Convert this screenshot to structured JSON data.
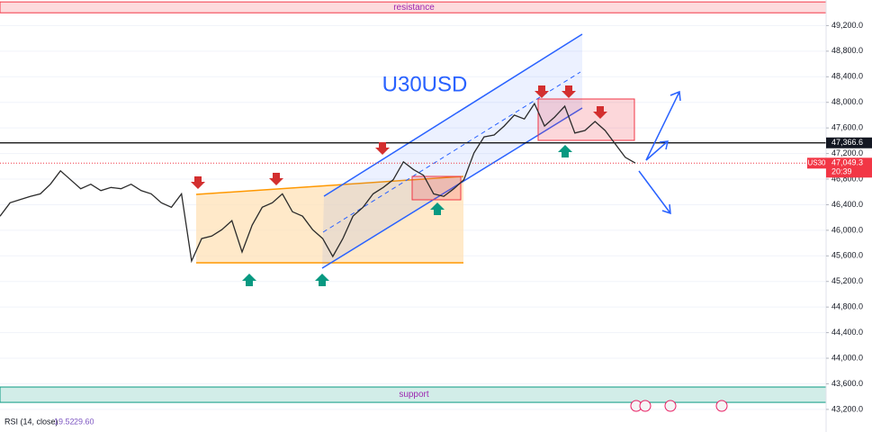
{
  "chart_data": {
    "type": "line",
    "title": "U30USD",
    "symbol": "US30",
    "color": "#2b2b2b",
    "values": [
      46220,
      46430,
      46480,
      46530,
      46570,
      46720,
      46930,
      46790,
      46650,
      46720,
      46620,
      46670,
      46650,
      46720,
      46620,
      46570,
      46430,
      46360,
      46570,
      45520,
      45870,
      45910,
      46010,
      46150,
      45660,
      46080,
      46360,
      46430,
      46570,
      46290,
      46220,
      46010,
      45870,
      45590,
      45870,
      46220,
      46360,
      46570,
      46670,
      46790,
      47070,
      46950,
      46860,
      46570,
      46530,
      46650,
      46790,
      47210,
      47460,
      47490,
      47630,
      47800,
      47740,
      47980,
      47630,
      47770,
      47940,
      47520,
      47560,
      47700,
      47560,
      47350,
      47140,
      47050
    ],
    "ylim": [
      43100,
      49600
    ],
    "yticks": [
      {
        "value": 43200,
        "label": "43,200.0"
      },
      {
        "value": 43600,
        "label": "43,600.0"
      },
      {
        "value": 44000,
        "label": "44,000.0"
      },
      {
        "value": 44400,
        "label": "44,400.0"
      },
      {
        "value": 44800,
        "label": "44,800.0"
      },
      {
        "value": 45200,
        "label": "45,200.0"
      },
      {
        "value": 45600,
        "label": "45,600.0"
      },
      {
        "value": 46000,
        "label": "46,000.0"
      },
      {
        "value": 46400,
        "label": "46,400.0"
      },
      {
        "value": 46800,
        "label": "46,800.0"
      },
      {
        "value": 47200,
        "label": "47,200.0"
      },
      {
        "value": 47600,
        "label": "47,600.0"
      },
      {
        "value": 48000,
        "label": "48,000.0"
      },
      {
        "value": 48400,
        "label": "48,400.0"
      },
      {
        "value": 48800,
        "label": "48,800.0"
      },
      {
        "value": 49200,
        "label": "49,200.0"
      }
    ],
    "grid": true,
    "level": {
      "value": 47366.6,
      "label": "47,366.6"
    },
    "last_price": {
      "value": 47049.3,
      "label": "47,049.3"
    },
    "countdown": "20:39",
    "zones": [
      {
        "name": "resistance",
        "low": 49400,
        "high": 49570,
        "color": "#f23645"
      },
      {
        "name": "support",
        "low": 43310,
        "high": 43550,
        "color": "#089981"
      }
    ],
    "rsi": {
      "label": "RSI (14, close)",
      "values": [
        19.52,
        {
          "value": 29.6,
          "label": "29.60"
        }
      ]
    }
  }
}
